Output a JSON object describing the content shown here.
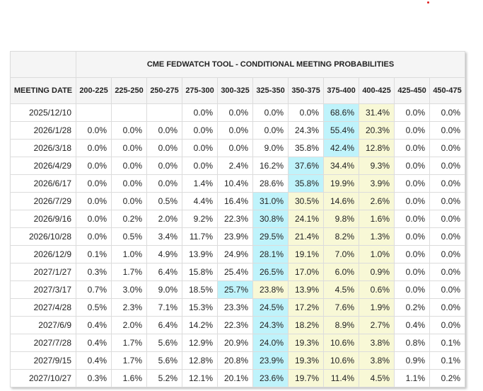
{
  "title": "CME FEDWATCH TOOL - CONDITIONAL MEETING PROBABILITIES",
  "first_col_header": "MEETING DATE",
  "columns": [
    "200-225",
    "225-250",
    "250-275",
    "275-300",
    "300-325",
    "325-350",
    "350-375",
    "375-400",
    "400-425",
    "425-450",
    "450-475"
  ],
  "colors": {
    "max": "#bff3fb",
    "range": "#f8f8d6",
    "header_bg": "#f5f5f5"
  },
  "rows": [
    {
      "date": "2025/12/10",
      "values": [
        "",
        "",
        "",
        "0.0%",
        "0.0%",
        "0.0%",
        "0.0%",
        "68.6%",
        "31.4%",
        "0.0%",
        "0.0%"
      ],
      "hl": [
        "",
        "",
        "",
        "",
        "",
        "",
        "",
        "b",
        "y",
        "",
        ""
      ]
    },
    {
      "date": "2026/1/28",
      "values": [
        "0.0%",
        "0.0%",
        "0.0%",
        "0.0%",
        "0.0%",
        "0.0%",
        "24.3%",
        "55.4%",
        "20.3%",
        "0.0%",
        "0.0%"
      ],
      "hl": [
        "",
        "",
        "",
        "",
        "",
        "",
        "",
        "b",
        "y",
        "",
        ""
      ]
    },
    {
      "date": "2026/3/18",
      "values": [
        "0.0%",
        "0.0%",
        "0.0%",
        "0.0%",
        "0.0%",
        "9.0%",
        "35.8%",
        "42.4%",
        "12.8%",
        "0.0%",
        "0.0%"
      ],
      "hl": [
        "",
        "",
        "",
        "",
        "",
        "",
        "",
        "b",
        "y",
        "",
        ""
      ]
    },
    {
      "date": "2026/4/29",
      "values": [
        "0.0%",
        "0.0%",
        "0.0%",
        "0.0%",
        "2.4%",
        "16.2%",
        "37.6%",
        "34.4%",
        "9.3%",
        "0.0%",
        "0.0%"
      ],
      "hl": [
        "",
        "",
        "",
        "",
        "",
        "",
        "b",
        "y",
        "y",
        "",
        ""
      ]
    },
    {
      "date": "2026/6/17",
      "values": [
        "0.0%",
        "0.0%",
        "0.0%",
        "1.4%",
        "10.4%",
        "28.6%",
        "35.8%",
        "19.9%",
        "3.9%",
        "0.0%",
        "0.0%"
      ],
      "hl": [
        "",
        "",
        "",
        "",
        "",
        "",
        "b",
        "y",
        "y",
        "",
        ""
      ]
    },
    {
      "date": "2026/7/29",
      "values": [
        "0.0%",
        "0.0%",
        "0.5%",
        "4.4%",
        "16.4%",
        "31.0%",
        "30.5%",
        "14.6%",
        "2.6%",
        "0.0%",
        "0.0%"
      ],
      "hl": [
        "",
        "",
        "",
        "",
        "",
        "b",
        "y",
        "y",
        "y",
        "",
        ""
      ]
    },
    {
      "date": "2026/9/16",
      "values": [
        "0.0%",
        "0.2%",
        "2.0%",
        "9.2%",
        "22.3%",
        "30.8%",
        "24.1%",
        "9.8%",
        "1.6%",
        "0.0%",
        "0.0%"
      ],
      "hl": [
        "",
        "",
        "",
        "",
        "",
        "b",
        "y",
        "y",
        "y",
        "",
        ""
      ]
    },
    {
      "date": "2026/10/28",
      "values": [
        "0.0%",
        "0.5%",
        "3.4%",
        "11.7%",
        "23.9%",
        "29.5%",
        "21.4%",
        "8.2%",
        "1.3%",
        "0.0%",
        "0.0%"
      ],
      "hl": [
        "",
        "",
        "",
        "",
        "",
        "b",
        "y",
        "y",
        "y",
        "",
        ""
      ]
    },
    {
      "date": "2026/12/9",
      "values": [
        "0.1%",
        "1.0%",
        "4.9%",
        "13.9%",
        "24.9%",
        "28.1%",
        "19.1%",
        "7.0%",
        "1.0%",
        "0.0%",
        "0.0%"
      ],
      "hl": [
        "",
        "",
        "",
        "",
        "",
        "b",
        "y",
        "y",
        "y",
        "",
        ""
      ]
    },
    {
      "date": "2027/1/27",
      "values": [
        "0.3%",
        "1.7%",
        "6.4%",
        "15.8%",
        "25.4%",
        "26.5%",
        "17.0%",
        "6.0%",
        "0.9%",
        "0.0%",
        "0.0%"
      ],
      "hl": [
        "",
        "",
        "",
        "",
        "",
        "b",
        "y",
        "y",
        "y",
        "",
        ""
      ]
    },
    {
      "date": "2027/3/17",
      "values": [
        "0.7%",
        "3.0%",
        "9.0%",
        "18.5%",
        "25.7%",
        "23.8%",
        "13.9%",
        "4.5%",
        "0.6%",
        "0.0%",
        "0.0%"
      ],
      "hl": [
        "",
        "",
        "",
        "",
        "b",
        "y",
        "y",
        "y",
        "y",
        "",
        ""
      ]
    },
    {
      "date": "2027/4/28",
      "values": [
        "0.5%",
        "2.3%",
        "7.1%",
        "15.3%",
        "23.3%",
        "24.5%",
        "17.2%",
        "7.6%",
        "1.9%",
        "0.2%",
        "0.0%"
      ],
      "hl": [
        "",
        "",
        "",
        "",
        "",
        "b",
        "y",
        "y",
        "y",
        "",
        ""
      ]
    },
    {
      "date": "2027/6/9",
      "values": [
        "0.4%",
        "2.0%",
        "6.4%",
        "14.2%",
        "22.3%",
        "24.3%",
        "18.2%",
        "8.9%",
        "2.7%",
        "0.4%",
        "0.0%"
      ],
      "hl": [
        "",
        "",
        "",
        "",
        "",
        "b",
        "y",
        "y",
        "y",
        "",
        ""
      ]
    },
    {
      "date": "2027/7/28",
      "values": [
        "0.4%",
        "1.7%",
        "5.6%",
        "12.9%",
        "20.9%",
        "24.0%",
        "19.3%",
        "10.6%",
        "3.8%",
        "0.8%",
        "0.1%"
      ],
      "hl": [
        "",
        "",
        "",
        "",
        "",
        "b",
        "y",
        "y",
        "y",
        "",
        ""
      ]
    },
    {
      "date": "2027/9/15",
      "values": [
        "0.4%",
        "1.7%",
        "5.6%",
        "12.8%",
        "20.8%",
        "23.9%",
        "19.3%",
        "10.6%",
        "3.8%",
        "0.9%",
        "0.1%"
      ],
      "hl": [
        "",
        "",
        "",
        "",
        "",
        "b",
        "y",
        "y",
        "y",
        "",
        ""
      ]
    },
    {
      "date": "2027/10/27",
      "values": [
        "0.3%",
        "1.6%",
        "5.2%",
        "12.1%",
        "20.1%",
        "23.6%",
        "19.7%",
        "11.4%",
        "4.5%",
        "1.1%",
        "0.2%"
      ],
      "hl": [
        "",
        "",
        "",
        "",
        "",
        "b",
        "y",
        "y",
        "y",
        "",
        ""
      ]
    }
  ]
}
